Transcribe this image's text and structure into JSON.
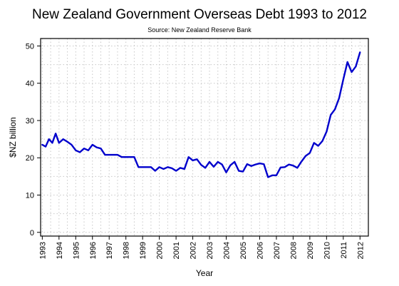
{
  "chart_data": {
    "type": "line",
    "title": "New Zealand Government Overseas Debt 1993 to 2012",
    "subtitle": "Source: New Zealand Reserve Bank",
    "xlabel": "Year",
    "ylabel": "$NZ billion",
    "xlim": [
      1992.9,
      2012.5
    ],
    "ylim": [
      -1,
      52
    ],
    "xticks": [
      "1993",
      "1994",
      "1995",
      "1996",
      "1997",
      "1998",
      "1999",
      "2000",
      "2001",
      "2002",
      "2003",
      "2004",
      "2005",
      "2006",
      "2007",
      "2008",
      "2009",
      "2010",
      "2011",
      "2012"
    ],
    "yticks": [
      "0",
      "10",
      "20",
      "30",
      "40",
      "50"
    ],
    "grid": true,
    "line_color": "#0000cc",
    "series": [
      {
        "name": "",
        "x": [
          1993.0,
          1993.2,
          1993.4,
          1993.6,
          1993.8,
          1994.0,
          1994.25,
          1994.5,
          1994.75,
          1995.0,
          1995.25,
          1995.5,
          1995.75,
          1996.0,
          1996.25,
          1996.5,
          1996.75,
          1997.0,
          1997.25,
          1997.5,
          1997.75,
          1998.0,
          1998.25,
          1998.5,
          1998.75,
          1999.0,
          1999.25,
          1999.5,
          1999.75,
          2000.0,
          2000.25,
          2000.5,
          2000.75,
          2001.0,
          2001.25,
          2001.5,
          2001.75,
          2002.0,
          2002.25,
          2002.5,
          2002.75,
          2003.0,
          2003.25,
          2003.5,
          2003.75,
          2004.0,
          2004.25,
          2004.5,
          2004.75,
          2005.0,
          2005.25,
          2005.5,
          2005.75,
          2006.0,
          2006.25,
          2006.5,
          2006.75,
          2007.0,
          2007.25,
          2007.5,
          2007.75,
          2008.0,
          2008.25,
          2008.5,
          2008.75,
          2009.0,
          2009.25,
          2009.5,
          2009.75,
          2010.0,
          2010.25,
          2010.5,
          2010.75,
          2011.0,
          2011.25,
          2011.5,
          2011.75,
          2012.0
        ],
        "values": [
          23.5,
          23.0,
          25.0,
          24.0,
          26.5,
          24.0,
          25.0,
          24.3,
          23.5,
          22.0,
          21.5,
          22.5,
          22.0,
          23.5,
          22.8,
          22.5,
          20.8,
          20.8,
          20.8,
          20.8,
          20.2,
          20.2,
          20.2,
          20.2,
          17.5,
          17.5,
          17.5,
          17.5,
          16.5,
          17.5,
          17.0,
          17.5,
          17.2,
          16.5,
          17.3,
          17.0,
          20.2,
          19.3,
          19.6,
          18.1,
          17.3,
          18.9,
          17.6,
          18.9,
          18.2,
          16.1,
          18.0,
          18.9,
          16.5,
          16.3,
          18.3,
          17.8,
          18.2,
          18.5,
          18.3,
          14.8,
          15.3,
          15.3,
          17.4,
          17.5,
          18.2,
          17.9,
          17.3,
          19.0,
          20.5,
          21.3,
          24.0,
          23.2,
          24.5,
          27.0,
          31.5,
          33.0,
          36.0,
          41.0,
          45.7,
          43.0,
          44.5,
          48.3
        ]
      }
    ]
  }
}
